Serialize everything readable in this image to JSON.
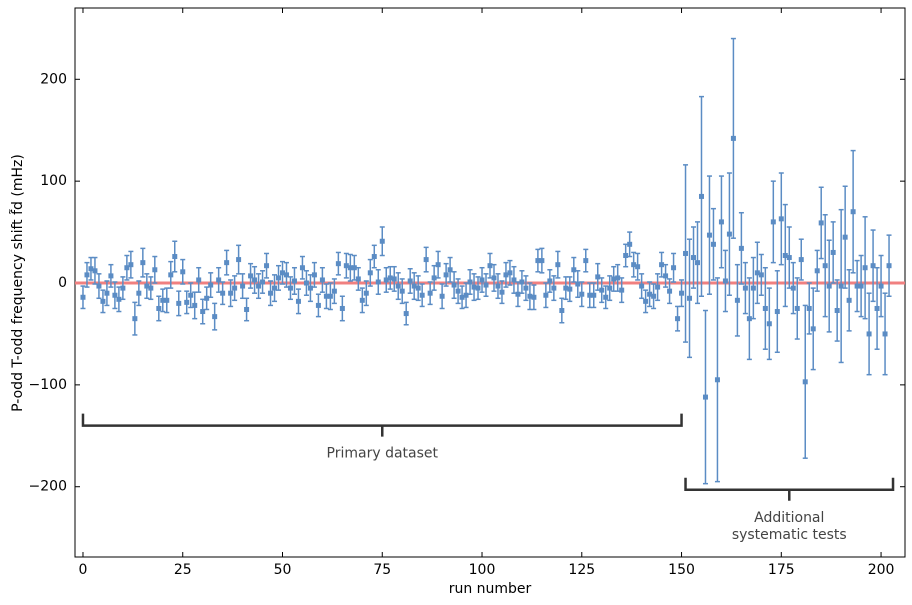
{
  "chart_data": {
    "type": "errorbar",
    "xlabel": "run number",
    "ylabel": "P-odd T-odd frequency shift f̃d (mHz)",
    "xlim": [
      -2,
      206
    ],
    "ylim": [
      -269,
      270
    ],
    "xticks": [
      0,
      25,
      50,
      75,
      100,
      125,
      150,
      175,
      200
    ],
    "yticks": [
      {
        "value": -200,
        "label": "−200"
      },
      {
        "value": -100,
        "label": "−100"
      },
      0,
      100,
      200
    ],
    "color": "#5b8cc4",
    "reference_line": {
      "value": 0,
      "color": "#f08080"
    },
    "annotations": [
      {
        "text": [
          "Primary dataset"
        ],
        "span": [
          0,
          150
        ],
        "y": -140
      },
      {
        "text": [
          "Additional",
          "systematic tests"
        ],
        "span": [
          151,
          203
        ],
        "y": -203
      }
    ],
    "x": [
      0,
      1,
      2,
      3,
      4,
      5,
      6,
      7,
      8,
      9,
      10,
      11,
      12,
      13,
      14,
      15,
      16,
      17,
      18,
      19,
      20,
      21,
      22,
      23,
      24,
      25,
      26,
      27,
      28,
      29,
      30,
      31,
      32,
      33,
      34,
      35,
      36,
      37,
      38,
      39,
      40,
      41,
      42,
      43,
      44,
      45,
      46,
      47,
      48,
      49,
      50,
      51,
      52,
      53,
      54,
      55,
      56,
      57,
      58,
      59,
      60,
      61,
      62,
      63,
      64,
      65,
      66,
      67,
      68,
      69,
      70,
      71,
      72,
      73,
      74,
      75,
      76,
      77,
      78,
      79,
      80,
      81,
      82,
      83,
      84,
      85,
      86,
      87,
      88,
      89,
      90,
      91,
      92,
      93,
      94,
      95,
      96,
      97,
      98,
      99,
      100,
      101,
      102,
      103,
      104,
      105,
      106,
      107,
      108,
      109,
      110,
      111,
      112,
      113,
      114,
      115,
      116,
      117,
      118,
      119,
      120,
      121,
      122,
      123,
      124,
      125,
      126,
      127,
      128,
      129,
      130,
      131,
      132,
      133,
      134,
      135,
      136,
      137,
      138,
      139,
      140,
      141,
      142,
      143,
      144,
      145,
      146,
      147,
      148,
      149,
      150,
      151,
      152,
      153,
      154,
      155,
      156,
      157,
      158,
      159,
      160,
      161,
      162,
      163,
      164,
      165,
      166,
      167,
      168,
      169,
      170,
      171,
      172,
      173,
      174,
      175,
      176,
      177,
      178,
      179,
      180,
      181,
      182,
      183,
      184,
      185,
      186,
      187,
      188,
      189,
      190,
      191,
      192,
      193,
      194,
      195,
      196,
      197,
      198,
      199,
      200,
      201,
      202
    ],
    "values": [
      -14,
      8,
      14,
      12,
      -3,
      -18,
      -10,
      7,
      -12,
      -16,
      -5,
      15,
      18,
      -35,
      -10,
      20,
      -3,
      -5,
      13,
      -25,
      -17,
      -17,
      8,
      26,
      -20,
      11,
      -19,
      -12,
      -22,
      3,
      -28,
      -15,
      -2,
      -33,
      3,
      -10,
      20,
      -10,
      -5,
      23,
      -3,
      -26,
      7,
      3,
      -3,
      1,
      17,
      -10,
      -5,
      5,
      10,
      8,
      -5,
      2,
      -18,
      15,
      0,
      -5,
      8,
      -22,
      3,
      -13,
      -13,
      -8,
      19,
      -25,
      17,
      15,
      15,
      4,
      -17,
      -10,
      10,
      26,
      1,
      41,
      3,
      5,
      4,
      -3,
      -8,
      -30,
      2,
      -3,
      -5,
      -12,
      23,
      -10,
      5,
      18,
      -13,
      8,
      13,
      -2,
      -8,
      -14,
      -12,
      1,
      -4,
      -5,
      3,
      -2,
      17,
      5,
      -3,
      -9,
      8,
      10,
      3,
      -11,
      1,
      -5,
      -13,
      -14,
      22,
      22,
      -12,
      2,
      -5,
      18,
      -27,
      -5,
      -6,
      13,
      -1,
      -11,
      22,
      -12,
      -12,
      6,
      -7,
      -14,
      -5,
      4,
      5,
      -7,
      27,
      38,
      18,
      16,
      -3,
      -18,
      -11,
      -13,
      -4,
      18,
      7,
      -8,
      15,
      -35,
      -10,
      29,
      -15,
      25,
      20,
      85,
      -112,
      47,
      38,
      -95,
      60,
      2,
      48,
      142,
      -17,
      34,
      -5,
      -35,
      -5,
      10,
      8,
      -25,
      -40,
      60,
      -28,
      63,
      27,
      25,
      -5,
      -25,
      23,
      -97,
      -25,
      -45,
      12,
      59,
      17,
      -3,
      30,
      -27,
      -3,
      45,
      -17,
      70,
      -3,
      -3,
      15,
      -50,
      17,
      -25,
      -3,
      -50,
      17
    ],
    "errors": [
      11,
      12,
      11,
      13,
      12,
      11,
      12,
      11,
      13,
      12,
      11,
      12,
      13,
      16,
      12,
      14,
      12,
      11,
      13,
      12,
      11,
      12,
      13,
      15,
      12,
      12,
      11,
      12,
      13,
      12,
      12,
      11,
      12,
      13,
      12,
      11,
      12,
      13,
      12,
      14,
      12,
      11,
      12,
      13,
      12,
      11,
      12,
      12,
      13,
      12,
      11,
      12,
      11,
      13,
      12,
      11,
      12,
      13,
      12,
      11,
      12,
      12,
      13,
      12,
      11,
      12,
      12,
      13,
      12,
      11,
      12,
      12,
      13,
      11,
      12,
      14,
      12,
      11,
      12,
      13,
      12,
      11,
      12,
      13,
      12,
      11,
      12,
      11,
      12,
      13,
      12,
      11,
      12,
      13,
      12,
      11,
      12,
      12,
      13,
      11,
      12,
      11,
      12,
      13,
      12,
      11,
      12,
      12,
      13,
      12,
      11,
      12,
      13,
      12,
      11,
      12,
      12,
      11,
      12,
      13,
      12,
      11,
      12,
      12,
      13,
      12,
      11,
      12,
      12,
      13,
      12,
      11,
      12,
      12,
      13,
      12,
      11,
      12,
      12,
      13,
      12,
      11,
      12,
      12,
      13,
      12,
      11,
      12,
      14,
      12,
      13,
      87,
      58,
      30,
      40,
      98,
      85,
      58,
      35,
      100,
      45,
      30,
      60,
      98,
      35,
      35,
      25,
      40,
      30,
      30,
      20,
      40,
      35,
      40,
      40,
      45,
      50,
      30,
      25,
      30,
      20,
      75,
      25,
      40,
      20,
      35,
      50,
      45,
      30,
      30,
      75,
      50,
      30,
      60,
      25,
      30,
      50,
      40,
      35,
      40,
      30,
      40,
      30
    ]
  }
}
